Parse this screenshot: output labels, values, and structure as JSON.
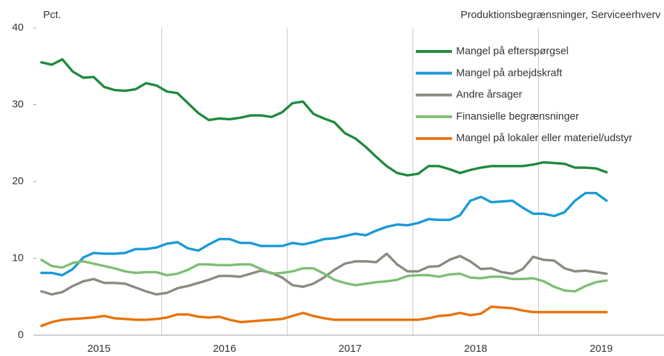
{
  "chart_data": {
    "type": "line",
    "title": "Produktionsbegrænsninger, Serviceerhverv",
    "y_label": "Pct.",
    "x": [
      2015.042,
      2015.125,
      2015.208,
      2015.292,
      2015.375,
      2015.458,
      2015.542,
      2015.625,
      2015.708,
      2015.792,
      2015.875,
      2015.958,
      2016.042,
      2016.125,
      2016.208,
      2016.292,
      2016.375,
      2016.458,
      2016.542,
      2016.625,
      2016.708,
      2016.792,
      2016.875,
      2016.958,
      2017.042,
      2017.125,
      2017.208,
      2017.292,
      2017.375,
      2017.458,
      2017.542,
      2017.625,
      2017.708,
      2017.792,
      2017.875,
      2017.958,
      2018.042,
      2018.125,
      2018.208,
      2018.292,
      2018.375,
      2018.458,
      2018.542,
      2018.625,
      2018.708,
      2018.792,
      2018.875,
      2018.958,
      2019.042,
      2019.125,
      2019.208,
      2019.292,
      2019.375,
      2019.458,
      2019.542
    ],
    "series": [
      {
        "name": "Mangel på efterspørgsel",
        "color": "#1e8a3c",
        "values": [
          35.5,
          35.2,
          35.9,
          34.3,
          33.5,
          33.6,
          32.3,
          31.9,
          31.8,
          32.0,
          32.8,
          32.5,
          31.7,
          31.5,
          30.2,
          28.9,
          28.0,
          28.2,
          28.1,
          28.3,
          28.6,
          28.6,
          28.4,
          29.0,
          30.2,
          30.4,
          28.8,
          28.2,
          27.7,
          26.3,
          25.6,
          24.5,
          23.2,
          22.0,
          21.1,
          20.8,
          21.0,
          22.0,
          22.0,
          21.6,
          21.1,
          21.5,
          21.8,
          22.0,
          22.0,
          22.0,
          22.0,
          22.2,
          22.5,
          22.4,
          22.3,
          21.8,
          21.8,
          21.7,
          21.2
        ]
      },
      {
        "name": "Mangel på arbejdskraft",
        "color": "#1a9ad6",
        "values": [
          8.1,
          8.1,
          7.8,
          8.6,
          10.1,
          10.7,
          10.6,
          10.6,
          10.7,
          11.2,
          11.2,
          11.4,
          11.9,
          12.1,
          11.3,
          11.0,
          11.8,
          12.5,
          12.5,
          12.0,
          12.0,
          11.6,
          11.6,
          11.6,
          12.0,
          11.8,
          12.1,
          12.5,
          12.6,
          12.9,
          13.2,
          13.0,
          13.6,
          14.1,
          14.4,
          14.3,
          14.6,
          15.1,
          15.0,
          15.0,
          15.6,
          17.5,
          18.0,
          17.3,
          17.4,
          17.5,
          16.6,
          15.8,
          15.8,
          15.5,
          16.0,
          17.5,
          18.5,
          18.5,
          17.5
        ]
      },
      {
        "name": "Andre årsager",
        "color": "#8a8a80",
        "values": [
          5.7,
          5.3,
          5.6,
          6.4,
          7.0,
          7.3,
          6.8,
          6.8,
          6.7,
          6.2,
          5.7,
          5.3,
          5.5,
          6.1,
          6.4,
          6.8,
          7.2,
          7.7,
          7.7,
          7.6,
          8.0,
          8.4,
          8.1,
          7.5,
          6.5,
          6.3,
          6.7,
          7.5,
          8.5,
          9.3,
          9.6,
          9.6,
          9.5,
          10.6,
          9.2,
          8.3,
          8.3,
          8.9,
          9.0,
          9.8,
          10.3,
          9.6,
          8.6,
          8.7,
          8.2,
          8.0,
          8.6,
          10.2,
          9.8,
          9.7,
          8.7,
          8.3,
          8.4,
          8.2,
          8.0
        ]
      },
      {
        "name": "Finansielle begrænsninger",
        "color": "#7cbf72",
        "values": [
          9.8,
          9.0,
          8.8,
          9.4,
          9.6,
          9.3,
          9.0,
          8.7,
          8.3,
          8.1,
          8.2,
          8.2,
          7.8,
          8.0,
          8.5,
          9.2,
          9.2,
          9.1,
          9.1,
          9.2,
          9.2,
          8.6,
          8.0,
          8.1,
          8.3,
          8.7,
          8.7,
          8.0,
          7.2,
          6.8,
          6.5,
          6.7,
          6.9,
          7.0,
          7.2,
          7.7,
          7.8,
          7.8,
          7.6,
          7.9,
          8.0,
          7.5,
          7.4,
          7.6,
          7.6,
          7.3,
          7.3,
          7.4,
          7.0,
          6.3,
          5.8,
          5.7,
          6.4,
          6.9,
          7.1
        ]
      },
      {
        "name": "Mangel på lokaler eller materiel/udstyr",
        "color": "#e8730c",
        "values": [
          1.2,
          1.7,
          2.0,
          2.1,
          2.2,
          2.3,
          2.5,
          2.2,
          2.1,
          2.0,
          2.0,
          2.1,
          2.3,
          2.7,
          2.7,
          2.4,
          2.3,
          2.4,
          2.0,
          1.7,
          1.8,
          1.9,
          2.0,
          2.1,
          2.5,
          2.9,
          2.5,
          2.2,
          2.0,
          2.0,
          2.0,
          2.0,
          2.0,
          2.0,
          2.0,
          2.0,
          2.0,
          2.2,
          2.5,
          2.6,
          2.9,
          2.6,
          2.8,
          3.7,
          3.6,
          3.5,
          3.2,
          3.0,
          3.0,
          3.0,
          3.0,
          3.0,
          3.0,
          3.0,
          3.0
        ]
      }
    ],
    "xlim": [
      2015,
      2020
    ],
    "xticks": [
      {
        "value": 2015.5,
        "label": "2015"
      },
      {
        "value": 2016.5,
        "label": "2016"
      },
      {
        "value": 2017.5,
        "label": "2017"
      },
      {
        "value": 2018.5,
        "label": "2018"
      },
      {
        "value": 2019.5,
        "label": "2019"
      }
    ],
    "xgrid": [
      2016,
      2017,
      2018,
      2019
    ],
    "ylim": [
      0,
      40
    ],
    "yticks": [
      0,
      10,
      20,
      30,
      40
    ],
    "legend": "top-right"
  }
}
